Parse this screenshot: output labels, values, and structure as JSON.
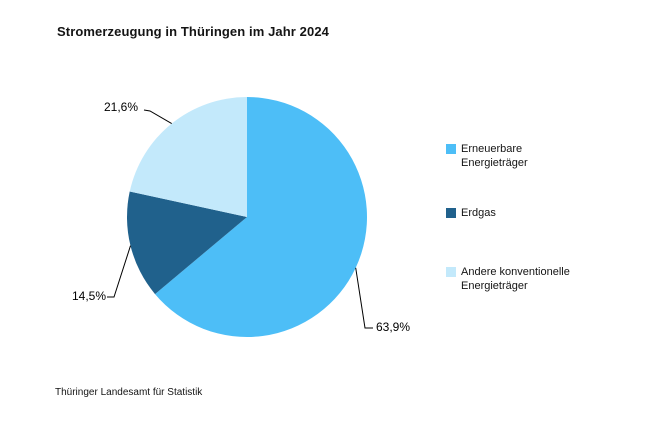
{
  "title": "Stromerzeugung in Thüringen im Jahr 2024",
  "source": "Thüringer Landesamt für Statistik",
  "chart_data": {
    "type": "pie",
    "title": "Stromerzeugung in Thüringen im Jahr 2024",
    "categories": [
      "Erneuerbare Energieträger",
      "Erdgas",
      "Andere konventionelle Energieträger"
    ],
    "values": [
      63.9,
      14.5,
      21.6
    ],
    "labels": [
      "63,9%",
      "14,5%",
      "21,6%"
    ],
    "colors": [
      "#4DBEF7",
      "#20618C",
      "#C3E9FB"
    ],
    "start_angle_deg": 0,
    "direction": "clockwise",
    "legend_position": "right",
    "source": "Thüringer Landesamt für Statistik"
  },
  "legend": {
    "items": [
      {
        "label": "Erneuerbare Energieträger",
        "color": "#4DBEF7"
      },
      {
        "label": "Erdgas",
        "color": "#20618C"
      },
      {
        "label": "Andere konventionelle Energieträger",
        "color": "#C3E9FB"
      }
    ]
  }
}
